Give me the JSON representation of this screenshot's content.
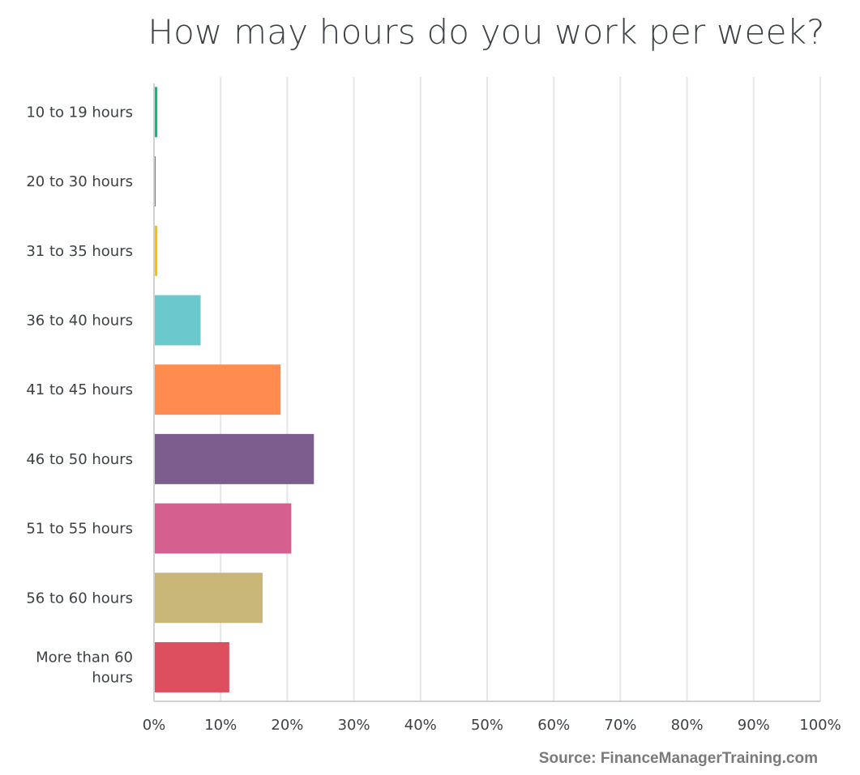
{
  "chart_data": {
    "type": "bar",
    "orientation": "horizontal",
    "title": "How may hours do you work per week?",
    "categories": [
      "10 to 19 hours",
      "20 to 30 hours",
      "31 to 35 hours",
      "36 to 40 hours",
      "41 to 45 hours",
      "46 to 50 hours",
      "51 to 55 hours",
      "56 to 60 hours",
      "More than 60 hours"
    ],
    "category_lines": [
      [
        "10 to 19 hours"
      ],
      [
        "20 to 30 hours"
      ],
      [
        "31 to 35 hours"
      ],
      [
        "36 to 40 hours"
      ],
      [
        "41 to 45 hours"
      ],
      [
        "46 to 50 hours"
      ],
      [
        "51 to 55 hours"
      ],
      [
        "56 to 60 hours"
      ],
      [
        "More than 60",
        "hours"
      ]
    ],
    "values": [
      0.5,
      0.25,
      0.5,
      7,
      19,
      24,
      20.6,
      16.3,
      11.3
    ],
    "colors": [
      "#1bb478",
      "#5b7fc2",
      "#f4c20d",
      "#6bc8cd",
      "#ff8b4f",
      "#7d5d8e",
      "#d55f8e",
      "#c8b677",
      "#dd4f5e"
    ],
    "xlim": [
      0,
      100
    ],
    "xticks": [
      0,
      10,
      20,
      30,
      40,
      50,
      60,
      70,
      80,
      90,
      100
    ],
    "tick_format": "{v}%",
    "grid": true,
    "xlabel": "",
    "ylabel": ""
  },
  "source": "Source: FinanceManagerTraining.com"
}
